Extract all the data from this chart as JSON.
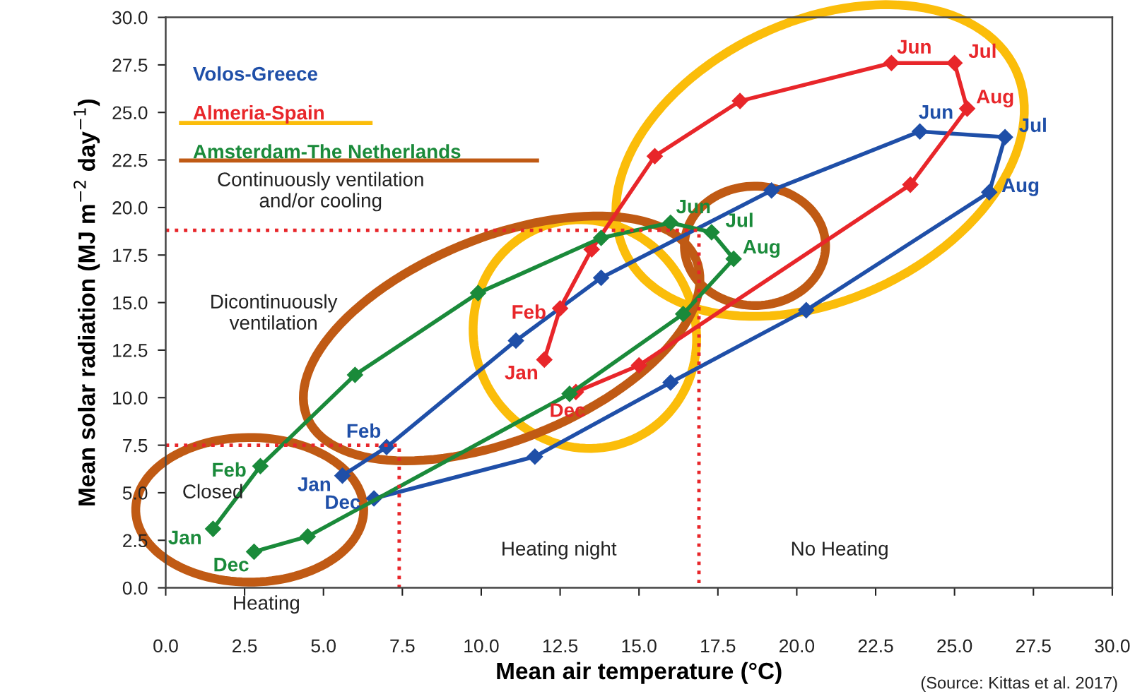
{
  "chart_data": {
    "type": "line",
    "xlabel": "Mean air temperature (°C)",
    "ylabel": "Mean solar radiation (MJ m$^{−2}$ day$^{−1}$)",
    "xlim": [
      0,
      30
    ],
    "ylim": [
      0,
      30
    ],
    "xticks": [
      {
        "value": 0,
        "label": "0.0"
      },
      {
        "value": 2.5,
        "label": "2.5"
      },
      {
        "value": 5,
        "label": "5.0"
      },
      {
        "value": 7.5,
        "label": "7.5"
      },
      {
        "value": 10,
        "label": "10.0"
      },
      {
        "value": 12.5,
        "label": "12.5"
      },
      {
        "value": 15,
        "label": "15.0"
      },
      {
        "value": 17.5,
        "label": "17.5"
      },
      {
        "value": 20,
        "label": "20.0"
      },
      {
        "value": 22.5,
        "label": "22.5"
      },
      {
        "value": 25,
        "label": "25.0"
      },
      {
        "value": 27.5,
        "label": "27.5"
      },
      {
        "value": 30,
        "label": "30.0"
      }
    ],
    "yticks": [
      {
        "value": 0,
        "label": "0.0"
      },
      {
        "value": 2.5,
        "label": "2.5"
      },
      {
        "value": 5,
        "label": "5.0"
      },
      {
        "value": 7.5,
        "label": "7.5"
      },
      {
        "value": 10,
        "label": "10.0"
      },
      {
        "value": 12.5,
        "label": "12.5"
      },
      {
        "value": 15,
        "label": "15.0"
      },
      {
        "value": 17.5,
        "label": "17.5"
      },
      {
        "value": 20,
        "label": "20.0"
      },
      {
        "value": 22.5,
        "label": "22.5"
      },
      {
        "value": 25,
        "label": "25.0"
      },
      {
        "value": 27.5,
        "label": "27.5"
      },
      {
        "value": 30,
        "label": "30.0"
      }
    ],
    "marker": "diamond",
    "grid": false,
    "legend": "top left",
    "series": [
      {
        "name": "Volos-Greece",
        "color": "#1f4fa8",
        "x": [
          5.6,
          7.0,
          11.1,
          13.8,
          19.2,
          23.9,
          26.6,
          26.1,
          20.3,
          16.0,
          11.7,
          6.6
        ],
        "values": [
          5.9,
          7.4,
          13.0,
          16.3,
          20.9,
          24.0,
          23.7,
          20.8,
          14.6,
          10.8,
          6.9,
          4.7
        ],
        "value_labels": [
          "Jan",
          "Feb",
          null,
          null,
          null,
          "Jun",
          "Jul",
          "Aug",
          null,
          null,
          null,
          "Dec"
        ]
      },
      {
        "name": "Almeria-Spain",
        "color": "#e8262a",
        "x": [
          12.0,
          12.5,
          13.5,
          15.5,
          18.2,
          23.0,
          25.0,
          25.4,
          23.6,
          15.0,
          13.0
        ],
        "values": [
          12.0,
          14.7,
          17.8,
          22.7,
          25.6,
          27.6,
          27.6,
          25.2,
          21.2,
          11.7,
          10.3
        ],
        "value_labels": [
          "Jan",
          "Feb",
          null,
          null,
          null,
          "Jun",
          "Jul",
          "Aug",
          null,
          null,
          "Dec"
        ]
      },
      {
        "name": "Amsterdam-The Netherlands",
        "color": "#1a8a3a",
        "x": [
          1.5,
          3.0,
          6.0,
          9.9,
          13.8,
          16.0,
          17.3,
          18.0,
          16.4,
          12.8,
          4.5,
          2.8
        ],
        "values": [
          3.1,
          6.4,
          11.2,
          15.5,
          18.4,
          19.2,
          18.7,
          17.3,
          14.4,
          10.2,
          2.7,
          1.9
        ],
        "value_labels": [
          "Jan",
          "Feb",
          null,
          null,
          null,
          "Jun",
          "Jul",
          "Aug",
          null,
          null,
          null,
          "Dec"
        ]
      },
      {
        "color": "#e8262a",
        "marker": "none",
        "line_style": "dotted",
        "x": [
          0,
          16.9,
          16.9
        ],
        "values": [
          18.8,
          18.8,
          0
        ]
      },
      {
        "color": "#e8262a",
        "marker": "none",
        "line_style": "dotted",
        "x": [
          0,
          7.4,
          7.4
        ],
        "values": [
          7.5,
          7.5,
          0
        ]
      }
    ],
    "annotations": [
      "Continuously ventilation\nand/or cooling",
      "Dicontinuously\nventilation",
      "Closed",
      "Heating",
      "Heating night",
      "No Heating",
      "(Source: Kittas et al. 2017)"
    ]
  }
}
